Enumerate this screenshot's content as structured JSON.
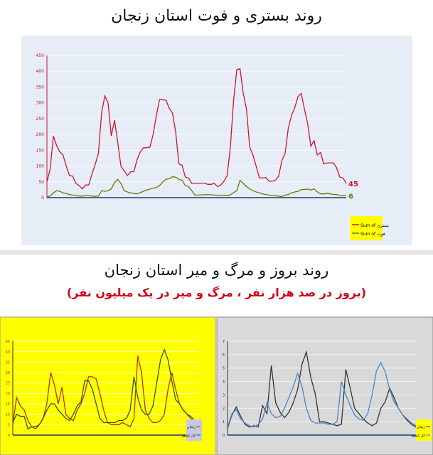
{
  "header": {
    "title": "روند بستری و فوت استان زنجان"
  },
  "section2": {
    "title": "روند بروز و مرگ و میر استان زنجان",
    "subtitle": "(بروز در صد هزار نفر ، مرگ و میر در یک میلیون نفر)"
  },
  "colors": {
    "red": "#d0142c",
    "green": "#6b7a00",
    "panel": "#e6edf7",
    "yellow": "#ffff00",
    "gray": "#d9d9d9"
  },
  "chart_data": [
    {
      "type": "line",
      "title": "روند بستری و فوت استان زنجان",
      "ylim": [
        0,
        450
      ],
      "yticks": [
        0,
        50,
        100,
        150,
        200,
        250,
        300,
        350,
        400,
        450
      ],
      "grid": true,
      "legend": "bottom-right",
      "series": [
        {
          "name": "Sum of بستری",
          "color": "#d0142c",
          "end_label": "45",
          "values": [
            50,
            90,
            195,
            165,
            145,
            135,
            100,
            70,
            68,
            45,
            38,
            28,
            40,
            40,
            75,
            105,
            140,
            270,
            322,
            300,
            195,
            245,
            175,
            100,
            85,
            70,
            82,
            82,
            120,
            145,
            158,
            158,
            160,
            200,
            260,
            310,
            310,
            308,
            283,
            268,
            208,
            107,
            102,
            65,
            62,
            45,
            46,
            46,
            46,
            46,
            42,
            42,
            45,
            35,
            40,
            52,
            70,
            160,
            310,
            405,
            408,
            330,
            280,
            160,
            135,
            100,
            63,
            62,
            64,
            52,
            52,
            55,
            68,
            118,
            140,
            220,
            260,
            285,
            320,
            330,
            280,
            235,
            163,
            180,
            135,
            143,
            107,
            110,
            110,
            110,
            95,
            65,
            62,
            45
          ]
        },
        {
          "name": "Sum of فوت",
          "color": "#6b7a00",
          "end_label": "6",
          "values": [
            2,
            5,
            15,
            22,
            20,
            15,
            13,
            10,
            8,
            7,
            5,
            5,
            6,
            6,
            5,
            4,
            5,
            22,
            20,
            22,
            28,
            48,
            58,
            45,
            22,
            18,
            15,
            13,
            12,
            16,
            20,
            24,
            27,
            30,
            32,
            38,
            50,
            58,
            60,
            66,
            65,
            58,
            55,
            38,
            35,
            22,
            8,
            8,
            9,
            9,
            10,
            9,
            8,
            7,
            6,
            8,
            6,
            9,
            16,
            22,
            55,
            45,
            35,
            28,
            22,
            18,
            15,
            12,
            10,
            8,
            6,
            6,
            5,
            3,
            8,
            10,
            15,
            18,
            20,
            25,
            26,
            27,
            24,
            28,
            18,
            12,
            12,
            13,
            12,
            10,
            10,
            7,
            6,
            6
          ]
        }
      ]
    },
    {
      "type": "line",
      "ylim": [
        0,
        45
      ],
      "yticks": [
        0,
        5,
        10,
        15,
        20,
        25,
        30,
        35,
        40,
        45
      ],
      "series": [
        {
          "name": "زنجان",
          "color": "#b03a00",
          "values": [
            5,
            18,
            14,
            12,
            7,
            4,
            3,
            5,
            8,
            15,
            30,
            24,
            15,
            23,
            10,
            8,
            7,
            12,
            15,
            20,
            28,
            28,
            27,
            20,
            12,
            6,
            5,
            5,
            5,
            6,
            5,
            4,
            8,
            38,
            30,
            12,
            8,
            6,
            6,
            7,
            10,
            22,
            30,
            22,
            15,
            12,
            10,
            8,
            6,
            5
          ]
        },
        {
          "name": "کل کشور",
          "color": "#2f5a20",
          "values": [
            6,
            10,
            9,
            9,
            3,
            4,
            4,
            5,
            8,
            12,
            15,
            15,
            12,
            10,
            8,
            7,
            10,
            14,
            16,
            26,
            26,
            22,
            15,
            8,
            6,
            6,
            6,
            6,
            7,
            7,
            8,
            12,
            28,
            18,
            12,
            10,
            10,
            14,
            25,
            36,
            41,
            36,
            26,
            17,
            15,
            12,
            10,
            9,
            7,
            5
          ]
        }
      ]
    },
    {
      "type": "line",
      "ylim": [
        0,
        7
      ],
      "yticks": [
        0,
        1,
        2,
        3,
        4,
        5,
        6,
        7
      ],
      "series": [
        {
          "name": "زنجان",
          "color": "#333333",
          "values": [
            0.5,
            1.5,
            2.1,
            1.4,
            0.8,
            0.6,
            0.7,
            0.6,
            2.2,
            1.6,
            5.2,
            2.4,
            1.7,
            1.3,
            1.7,
            2.4,
            3.4,
            5.3,
            6.2,
            4.3,
            3.1,
            1.0,
            1.0,
            0.9,
            0.8,
            0.7,
            0.8,
            4.9,
            3.5,
            2.0,
            1.6,
            1.2,
            0.9,
            0.7,
            0.9,
            2.0,
            2.5,
            3.5,
            2.8,
            2.0,
            1.5,
            1.1,
            0.8,
            0.6
          ]
        },
        {
          "name": "کل کشور",
          "color": "#4a86c8",
          "values": [
            0.6,
            1.6,
            1.9,
            1.2,
            0.9,
            0.7,
            0.6,
            0.8,
            1.2,
            2.4,
            1.6,
            1.3,
            1.4,
            2.0,
            2.8,
            3.6,
            4.6,
            3.6,
            2.0,
            1.1,
            0.9,
            0.9,
            0.9,
            0.8,
            0.8,
            1.0,
            4.0,
            3.0,
            2.2,
            1.5,
            1.2,
            1.1,
            1.6,
            3.0,
            4.8,
            5.4,
            4.7,
            3.4,
            2.5,
            2.0,
            1.5,
            1.2,
            0.9,
            0.7
          ]
        }
      ]
    }
  ]
}
